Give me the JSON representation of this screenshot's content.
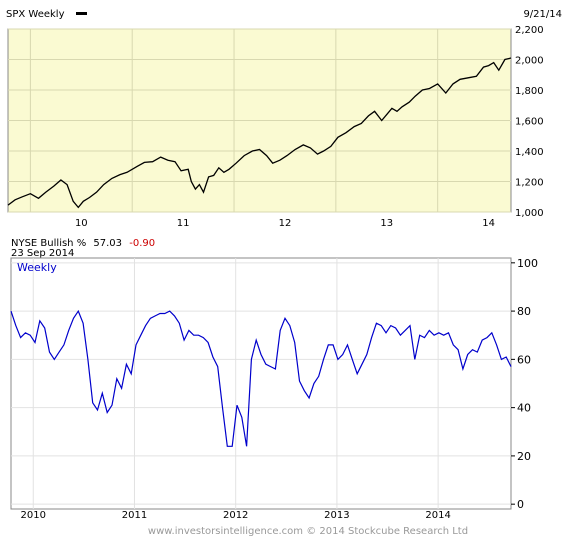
{
  "top_chart": {
    "title": "SPX Weekly",
    "date": "9/21/14",
    "background": "#fafad2",
    "line_color": "#000000"
  },
  "bottom_chart": {
    "title": "NYSE Bullish %",
    "value": "57.03",
    "change": "-0.90",
    "change_color": "#cc0000",
    "date": "23 Sep 2014",
    "legend": "Weekly",
    "line_color": "#0000cc"
  },
  "footer": "www.investorsintelligence.com  © 2014 Stockcube Research Ltd",
  "chart_data": [
    {
      "type": "line",
      "title": "SPX Weekly",
      "x": [
        2009.78,
        2009.85,
        2009.92,
        2010.0,
        2010.08,
        2010.15,
        2010.23,
        2010.3,
        2010.36,
        2010.42,
        2010.47,
        2010.52,
        2010.58,
        2010.65,
        2010.72,
        2010.8,
        2010.88,
        2010.95,
        2011.05,
        2011.12,
        2011.2,
        2011.28,
        2011.35,
        2011.42,
        2011.48,
        2011.55,
        2011.58,
        2011.62,
        2011.66,
        2011.7,
        2011.75,
        2011.8,
        2011.85,
        2011.9,
        2011.95,
        2012.02,
        2012.1,
        2012.18,
        2012.25,
        2012.32,
        2012.38,
        2012.45,
        2012.52,
        2012.6,
        2012.68,
        2012.75,
        2012.82,
        2012.88,
        2012.95,
        2013.02,
        2013.1,
        2013.18,
        2013.25,
        2013.32,
        2013.38,
        2013.45,
        2013.5,
        2013.55,
        2013.6,
        2013.65,
        2013.72,
        2013.78,
        2013.85,
        2013.92,
        2014.0,
        2014.08,
        2014.15,
        2014.22,
        2014.3,
        2014.38,
        2014.45,
        2014.5,
        2014.55,
        2014.6,
        2014.66,
        2014.72
      ],
      "y": [
        1045,
        1080,
        1100,
        1120,
        1090,
        1130,
        1170,
        1210,
        1180,
        1070,
        1030,
        1070,
        1095,
        1130,
        1180,
        1220,
        1245,
        1260,
        1300,
        1325,
        1330,
        1360,
        1340,
        1330,
        1270,
        1280,
        1200,
        1150,
        1180,
        1130,
        1230,
        1240,
        1290,
        1260,
        1280,
        1320,
        1370,
        1400,
        1410,
        1370,
        1320,
        1340,
        1370,
        1410,
        1440,
        1420,
        1380,
        1400,
        1430,
        1490,
        1520,
        1560,
        1580,
        1630,
        1660,
        1600,
        1640,
        1680,
        1660,
        1690,
        1720,
        1760,
        1800,
        1810,
        1840,
        1780,
        1840,
        1870,
        1880,
        1890,
        1950,
        1960,
        1980,
        1930,
        2000,
        2010
      ],
      "yticks": [
        "1,000",
        "1,200",
        "1,400",
        "1,600",
        "1,800",
        "2,000",
        "2,200"
      ],
      "xticks": [
        "10",
        "11",
        "12",
        "13",
        "14"
      ],
      "ylim": [
        1000,
        2200
      ],
      "xlim": [
        2009.78,
        2014.72
      ],
      "grid": true
    },
    {
      "type": "line",
      "title": "NYSE Bullish %",
      "series": [
        {
          "name": "Weekly",
          "values": [
            80,
            74,
            69,
            71,
            70,
            67,
            76,
            73,
            63,
            60,
            63,
            66,
            72,
            77,
            80,
            75,
            60,
            42,
            39,
            46,
            38,
            41,
            52,
            48,
            58,
            54,
            66,
            70,
            74,
            77,
            78,
            79,
            79,
            80,
            78,
            75,
            68,
            72,
            70,
            70,
            69,
            67,
            61,
            57,
            40,
            24,
            24,
            41,
            36,
            24,
            60,
            68,
            62,
            58,
            57,
            56,
            72,
            77,
            74,
            67,
            51,
            47,
            44,
            50,
            53,
            60,
            66,
            66,
            60,
            62,
            66,
            60,
            54,
            58,
            62,
            69,
            75,
            74,
            71,
            74,
            73,
            70,
            72,
            74,
            60,
            70,
            69,
            72,
            70,
            71,
            70,
            71,
            66,
            64,
            56,
            62,
            64,
            63,
            68,
            69,
            71,
            66,
            60,
            61,
            57
          ]
        }
      ],
      "x_start": 2009.78,
      "x_end": 2014.72,
      "yticks": [
        "0",
        "20",
        "40",
        "60",
        "80",
        "100"
      ],
      "xticks": [
        "2010",
        "2011",
        "2012",
        "2013",
        "2014"
      ],
      "ylim": [
        -2,
        102
      ],
      "xlim": [
        2009.78,
        2014.72
      ],
      "grid": true
    }
  ]
}
